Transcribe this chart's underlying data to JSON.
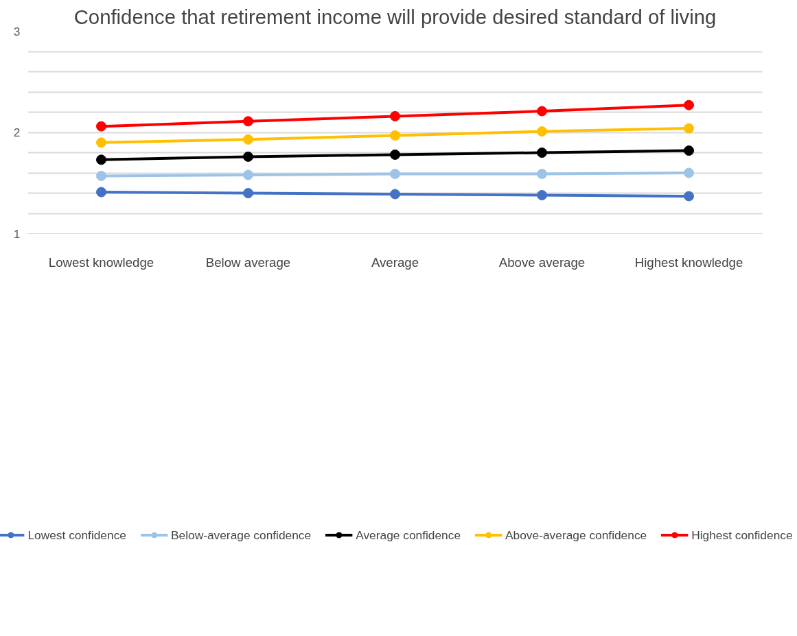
{
  "chart_data": {
    "type": "line",
    "title": "Confidence that retirement income will provide desired standard of living",
    "categories": [
      "Lowest knowledge",
      "Below average",
      "Average",
      "Above average",
      "Highest knowledge"
    ],
    "series": [
      {
        "name": "Lowest confidence",
        "color": "#4472c4",
        "values": [
          1.41,
          1.4,
          1.39,
          1.38,
          1.37
        ]
      },
      {
        "name": "Below-average confidence",
        "color": "#9dc3e6",
        "values": [
          1.57,
          1.58,
          1.59,
          1.59,
          1.6
        ]
      },
      {
        "name": "Average confidence",
        "color": "#000000",
        "values": [
          1.73,
          1.76,
          1.78,
          1.8,
          1.82
        ]
      },
      {
        "name": "Above-average confidence",
        "color": "#ffc000",
        "values": [
          1.9,
          1.93,
          1.97,
          2.01,
          2.04
        ]
      },
      {
        "name": "Highest confidence",
        "color": "#ff0000",
        "values": [
          2.06,
          2.11,
          2.16,
          2.21,
          2.27
        ]
      }
    ],
    "ylim": [
      1,
      3
    ],
    "yticks": [
      1,
      {
        "value": 1.2,
        "label": null
      },
      {
        "value": 1.4,
        "label": null
      },
      {
        "value": 1.6,
        "label": null
      },
      {
        "value": 1.8,
        "label": null
      },
      2,
      {
        "value": 2.2,
        "label": null
      },
      {
        "value": 2.4,
        "label": null
      },
      {
        "value": 2.6,
        "label": null
      },
      {
        "value": 2.8,
        "label": null
      },
      3
    ],
    "grid": "y",
    "legend": "bottom",
    "marker": "circle",
    "line_style": "solid"
  }
}
